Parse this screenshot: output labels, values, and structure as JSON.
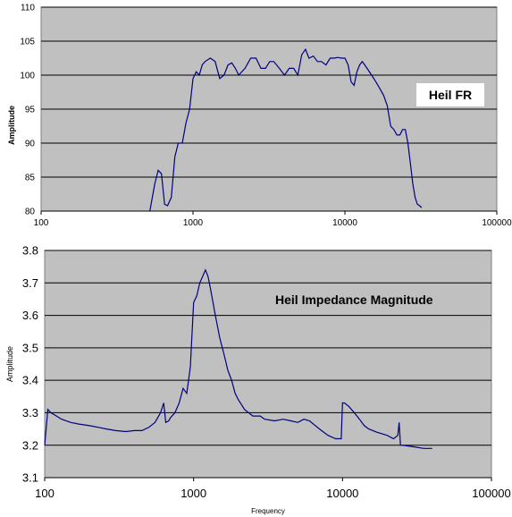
{
  "chart_data": [
    {
      "type": "line",
      "title": "Heil FR",
      "xlabel": "",
      "ylabel": "Amplitude",
      "xscale": "log",
      "xlim": [
        100,
        100000
      ],
      "ylim": [
        80,
        110
      ],
      "xticks": [
        "100",
        "1000",
        "10000",
        "100000"
      ],
      "yticks": [
        "80",
        "85",
        "90",
        "95",
        "100",
        "105",
        "110"
      ],
      "grid": "horizontal",
      "plot_background": "#c0c0c0",
      "line_color": "#000080",
      "title_box": "white box, right side",
      "series": [
        {
          "x": [
            520,
            560,
            590,
            620,
            650,
            680,
            720,
            760,
            800,
            850,
            900,
            950,
            1000,
            1050,
            1100,
            1150,
            1200,
            1300,
            1400,
            1500,
            1600,
            1700,
            1800,
            1900,
            2000,
            2200,
            2400,
            2600,
            2800,
            3000,
            3200,
            3400,
            3700,
            4000,
            4300,
            4600,
            4900,
            5200,
            5500,
            5800,
            6200,
            6600,
            7000,
            7500,
            8000,
            8500,
            9000,
            9500,
            10000,
            10500,
            11000,
            11500,
            12000,
            12500,
            13000,
            13500,
            14000,
            15000,
            16000,
            17000,
            18000,
            19000,
            20000,
            21000,
            22000,
            23000,
            24000,
            25000,
            26000,
            27000,
            28000,
            29000,
            30000,
            31000,
            32000
          ],
          "y": [
            80,
            84,
            86,
            85.5,
            81,
            80.8,
            82,
            88,
            90,
            90,
            93,
            95,
            99.5,
            100.5,
            100,
            101.5,
            102,
            102.5,
            102,
            99.5,
            100,
            101.5,
            101.8,
            101,
            100,
            101,
            102.5,
            102.5,
            101,
            101,
            102,
            102,
            101,
            100,
            101,
            101,
            100,
            103,
            103.8,
            102.5,
            102.8,
            102,
            102,
            101.5,
            102.5,
            102.5,
            102.6,
            102.5,
            102.5,
            101.5,
            99,
            98.5,
            100.5,
            101.5,
            102,
            101.5,
            101,
            100,
            99,
            98,
            97,
            95.5,
            92.5,
            92,
            91.2,
            91.2,
            92,
            92,
            90,
            87,
            84,
            82,
            81,
            80.8,
            80.5
          ]
        }
      ]
    },
    {
      "type": "line",
      "title": "Heil Impedance Magnitude",
      "xlabel": "Frequency",
      "ylabel": "Amplitude",
      "xscale": "log",
      "xlim": [
        100,
        100000
      ],
      "ylim": [
        3.1,
        3.8
      ],
      "xticks": [
        "100",
        "1000",
        "10000",
        "100000"
      ],
      "yticks": [
        "3.1",
        "3.2",
        "3.3",
        "3.4",
        "3.5",
        "3.6",
        "3.7",
        "3.8"
      ],
      "grid": "horizontal",
      "plot_background": "#c0c0c0",
      "line_color": "#000080",
      "series": [
        {
          "x": [
            100,
            105,
            110,
            120,
            130,
            150,
            170,
            200,
            230,
            260,
            300,
            350,
            400,
            450,
            500,
            550,
            600,
            630,
            650,
            680,
            700,
            750,
            800,
            850,
            900,
            950,
            1000,
            1050,
            1100,
            1150,
            1200,
            1250,
            1300,
            1400,
            1500,
            1600,
            1700,
            1800,
            1900,
            2000,
            2200,
            2500,
            2800,
            3000,
            3500,
            4000,
            4500,
            5000,
            5500,
            6000,
            7000,
            8000,
            9000,
            9800,
            10000,
            10300,
            11000,
            12000,
            13000,
            14000,
            15000,
            17000,
            20000,
            22000,
            23500,
            24000,
            24500,
            25000,
            27000,
            30000,
            35000,
            40000
          ],
          "y": [
            3.2,
            3.31,
            3.3,
            3.29,
            3.28,
            3.27,
            3.265,
            3.26,
            3.255,
            3.25,
            3.245,
            3.242,
            3.245,
            3.245,
            3.255,
            3.27,
            3.3,
            3.33,
            3.27,
            3.275,
            3.285,
            3.3,
            3.33,
            3.375,
            3.36,
            3.44,
            3.64,
            3.66,
            3.7,
            3.72,
            3.74,
            3.72,
            3.68,
            3.6,
            3.53,
            3.48,
            3.43,
            3.4,
            3.36,
            3.34,
            3.31,
            3.29,
            3.29,
            3.28,
            3.275,
            3.28,
            3.275,
            3.27,
            3.28,
            3.275,
            3.25,
            3.23,
            3.22,
            3.22,
            3.33,
            3.33,
            3.32,
            3.3,
            3.28,
            3.26,
            3.25,
            3.24,
            3.23,
            3.22,
            3.23,
            3.27,
            3.2,
            3.2,
            3.198,
            3.195,
            3.19,
            3.19
          ]
        }
      ]
    }
  ]
}
